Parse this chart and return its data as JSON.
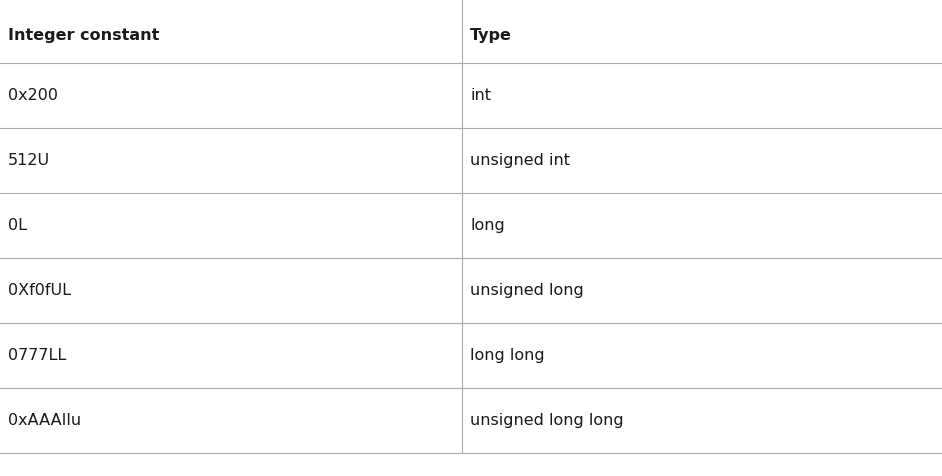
{
  "col1_header": "Integer constant",
  "col2_header": "Type",
  "rows": [
    [
      "0x200",
      "int"
    ],
    [
      "512U",
      "unsigned int"
    ],
    [
      "0L",
      "long"
    ],
    [
      "0Xf0fUL",
      "unsigned long"
    ],
    [
      "0777LL",
      "long long"
    ],
    [
      "0xAAAIlu",
      "unsigned long long"
    ]
  ],
  "background_color": "#ffffff",
  "line_color": "#aaaaaa",
  "header_font_size": 11.5,
  "cell_font_size": 11.5,
  "header_font_weight": "bold",
  "cell_font_weight": "normal",
  "text_color": "#1a1a1a",
  "font_family": "DejaVu Sans Condensed"
}
